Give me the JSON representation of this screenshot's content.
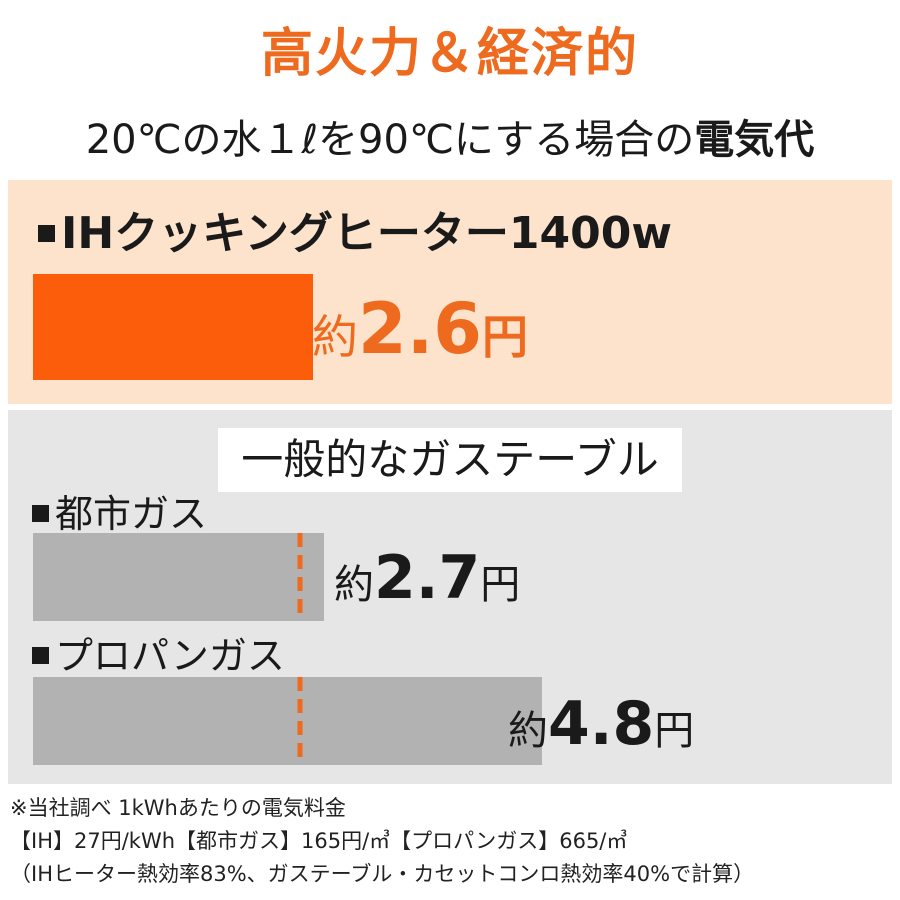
{
  "title": "高火力＆経済的",
  "subtitle": {
    "main": "20℃の水１ℓを90℃にする場合の",
    "strong": "電気代"
  },
  "gas_header": "一般的なガステーブル",
  "notes": [
    "※当社調べ 1kWhあたりの電気料金",
    "【IH】27円/kWh【都市ガス】165円/㎥【プロパンガス】665/㎥",
    "（IHヒーター熱効率83%、ガステーブル・カセットコンロ熱効率40%で計算）"
  ],
  "colors": {
    "accent": "#ee6a1e",
    "ih_bar": "#fb5d0b",
    "gas_bar": "#b2b2b2",
    "ih_panel": "#fde3cc",
    "gas_panel": "#e6e6e6"
  },
  "chart_data": {
    "type": "bar",
    "categories": [
      "IHクッキングヒーター1400w",
      "都市ガス",
      "プロパンガス"
    ],
    "values": [
      2.6,
      2.7,
      4.8
    ],
    "value_labels": [
      {
        "prefix": "約",
        "number": "2.6",
        "unit": "円"
      },
      {
        "prefix": "約",
        "number": "2.7",
        "unit": "円"
      },
      {
        "prefix": "約",
        "number": "4.8",
        "unit": "円"
      }
    ],
    "reference_line": {
      "value": 2.6,
      "style": "dashed",
      "color": "#ee6a1e"
    },
    "orientation": "horizontal",
    "grid": false
  }
}
